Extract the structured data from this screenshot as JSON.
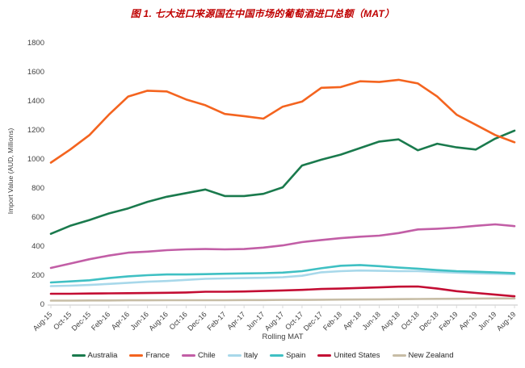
{
  "title": "图 1. 七大进口来源国在中国市场的葡萄酒进口总额（MAT）",
  "chart_data": {
    "type": "line",
    "title": "图 1. 七大进口来源国在中国市场的葡萄酒进口总额（MAT）",
    "xlabel": "Rolling MAT",
    "ylabel": "Import Value (AUD, Millions)",
    "ylim": [
      0,
      1800
    ],
    "y_tick_step": 200,
    "grid": false,
    "legend_position": "bottom",
    "categories": [
      "Aug-15",
      "Oct-15",
      "Dec-15",
      "Feb-16",
      "Apr-16",
      "Jun-16",
      "Aug-16",
      "Oct-16",
      "Dec-16",
      "Feb-17",
      "Apr-17",
      "Jun-17",
      "Aug-17",
      "Oct-17",
      "Dec-17",
      "Feb-18",
      "Apr-18",
      "Jun-18",
      "Aug-18",
      "Oct-18",
      "Dec-18",
      "Feb-19",
      "Apr-19",
      "Jun-19",
      "Aug-19"
    ],
    "series": [
      {
        "name": "Australia",
        "color": "#1a7a4d",
        "values": [
          485,
          540,
          580,
          625,
          660,
          705,
          740,
          765,
          790,
          745,
          745,
          760,
          805,
          955,
          995,
          1030,
          1075,
          1120,
          1135,
          1060,
          1105,
          1080,
          1065,
          1140,
          1195
        ]
      },
      {
        "name": "France",
        "color": "#f4641f",
        "values": [
          975,
          1065,
          1165,
          1305,
          1430,
          1470,
          1465,
          1410,
          1370,
          1310,
          1295,
          1278,
          1360,
          1395,
          1490,
          1495,
          1535,
          1530,
          1545,
          1520,
          1430,
          1305,
          1235,
          1165,
          1115
        ]
      },
      {
        "name": "Chile",
        "color": "#c25ea6",
        "values": [
          250,
          280,
          310,
          335,
          355,
          362,
          372,
          378,
          380,
          378,
          380,
          390,
          405,
          428,
          442,
          455,
          465,
          472,
          490,
          515,
          520,
          528,
          540,
          550,
          538
        ]
      },
      {
        "name": "Italy",
        "color": "#a8d8ea",
        "values": [
          125,
          128,
          133,
          140,
          148,
          155,
          160,
          168,
          175,
          178,
          180,
          182,
          186,
          196,
          220,
          228,
          232,
          230,
          228,
          228,
          222,
          218,
          213,
          210,
          207
        ]
      },
      {
        "name": "Spain",
        "color": "#3fc0c3",
        "values": [
          150,
          157,
          165,
          180,
          192,
          200,
          205,
          205,
          207,
          210,
          212,
          214,
          218,
          228,
          248,
          265,
          270,
          262,
          252,
          245,
          235,
          228,
          224,
          219,
          214
        ]
      },
      {
        "name": "United States",
        "color": "#c30d33",
        "values": [
          72,
          72,
          74,
          75,
          76,
          77,
          79,
          81,
          86,
          86,
          88,
          91,
          95,
          99,
          105,
          108,
          112,
          116,
          121,
          122,
          108,
          90,
          78,
          66,
          55
        ]
      },
      {
        "name": "New Zealand",
        "color": "#c7bda6",
        "values": [
          25,
          25,
          26,
          26,
          27,
          27,
          28,
          28,
          28,
          28,
          29,
          29,
          30,
          30,
          31,
          32,
          33,
          34,
          35,
          36,
          37,
          38,
          39,
          40,
          40
        ]
      }
    ]
  },
  "colors": {
    "title_text": "#bf0000",
    "axis_text": "#3f3f3f",
    "axis_line": "#d9d9d9"
  }
}
